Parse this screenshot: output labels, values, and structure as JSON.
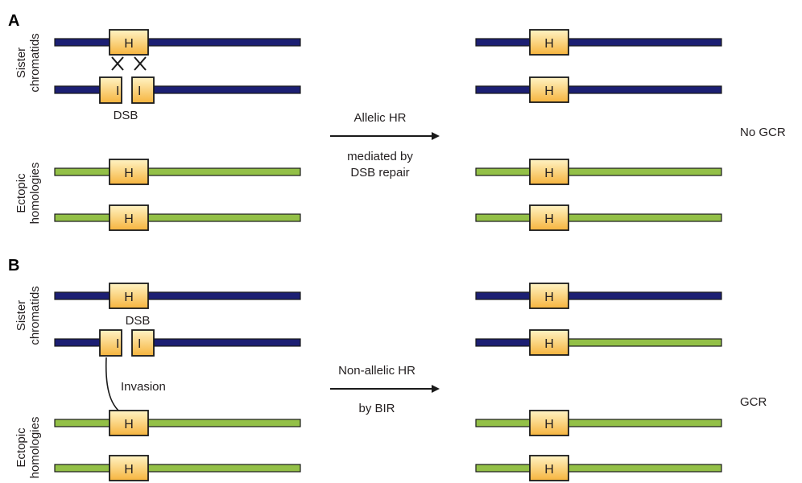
{
  "colors": {
    "blue_chromatid": "#1c1f73",
    "green_homology": "#93c047",
    "box_fill_top": "#fff3c4",
    "box_fill_bottom": "#f6b43e",
    "stroke": "#1a1a1a"
  },
  "box_label": "H",
  "panel_a": {
    "letter": "A",
    "sister_label": [
      "Sister",
      "chromatids"
    ],
    "ectopic_label": [
      "Ectopic",
      "homologies"
    ],
    "dsb_label": "DSB",
    "arrow_label_top": "Allelic HR",
    "arrow_label_bottom": [
      "mediated by",
      "DSB repair"
    ],
    "outcome": "No GCR"
  },
  "panel_b": {
    "letter": "B",
    "sister_label": [
      "Sister",
      "chromatids"
    ],
    "ectopic_label": [
      "Ectopic",
      "homologies"
    ],
    "dsb_label": "DSB",
    "invasion_label": "Invasion",
    "arrow_label_top": "Non-allelic HR",
    "arrow_label_bottom": [
      "by BIR"
    ],
    "outcome": "GCR"
  }
}
